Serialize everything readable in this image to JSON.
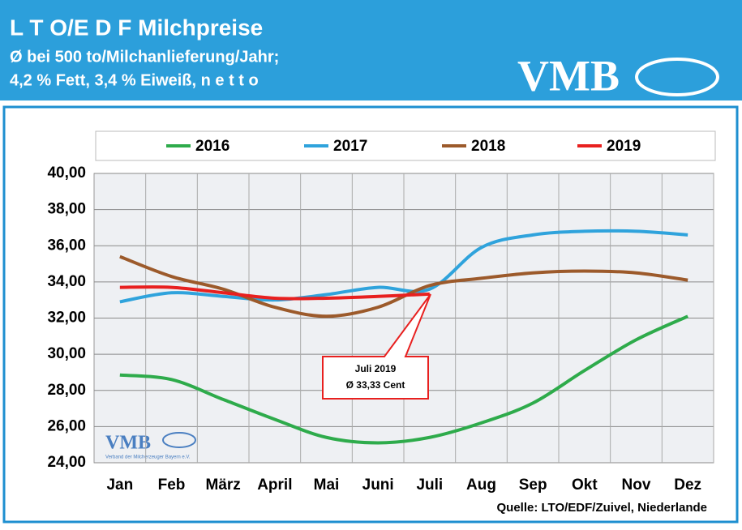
{
  "header": {
    "title": "L T O/E D F Milchpreise",
    "subtitle_1": "Ø bei 500 to/Milchanlieferung/Jahr;",
    "subtitle_2": "4,2 % Fett, 3,4 % Eiweiß, n e t t o",
    "logo": "VMB"
  },
  "chart_data": {
    "type": "line",
    "categories": [
      "Jan",
      "Feb",
      "März",
      "April",
      "Mai",
      "Juni",
      "Juli",
      "Aug",
      "Sep",
      "Okt",
      "Nov",
      "Dez"
    ],
    "series": [
      {
        "name": "2016",
        "color": "#2eab4b",
        "values": [
          28.85,
          28.6,
          27.5,
          26.4,
          25.4,
          25.1,
          25.4,
          26.2,
          27.3,
          29.1,
          30.8,
          32.1
        ]
      },
      {
        "name": "2017",
        "color": "#2fa3dc",
        "values": [
          32.9,
          33.4,
          33.2,
          33.0,
          33.3,
          33.7,
          33.6,
          35.9,
          36.6,
          36.8,
          36.8,
          36.6
        ]
      },
      {
        "name": "2018",
        "color": "#9c5a2b",
        "values": [
          35.4,
          34.3,
          33.6,
          32.6,
          32.1,
          32.6,
          33.8,
          34.2,
          34.5,
          34.6,
          34.5,
          34.1
        ]
      },
      {
        "name": "2019",
        "color": "#e8201f",
        "values": [
          33.7,
          33.7,
          33.4,
          33.1,
          33.1,
          33.2,
          33.33,
          null,
          null,
          null,
          null,
          null
        ]
      }
    ],
    "ylim": [
      24,
      40
    ],
    "yticks": [
      {
        "value": 24,
        "label": "24,00"
      },
      {
        "value": 26,
        "label": "26,00"
      },
      {
        "value": 28,
        "label": "28,00"
      },
      {
        "value": 30,
        "label": "30,00"
      },
      {
        "value": 32,
        "label": "32,00"
      },
      {
        "value": 34,
        "label": "34,00"
      },
      {
        "value": 36,
        "label": "36,00"
      },
      {
        "value": 38,
        "label": "38,00"
      },
      {
        "value": 40,
        "label": "40,00"
      }
    ],
    "grid": true,
    "annotation": {
      "line_1": "Juli 2019",
      "line_2": "Ø 33,33 Cent"
    },
    "source": "Quelle: LTO/EDF/Zuivel, Niederlande",
    "watermark": {
      "logo": "VMB",
      "text": "Verband der Milcherzeuger Bayern e.V."
    }
  }
}
